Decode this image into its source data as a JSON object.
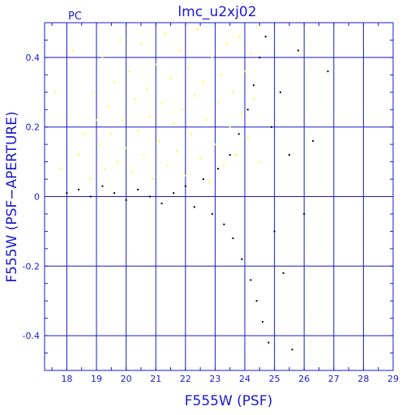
{
  "chart_data": {
    "type": "scatter",
    "title": "lmc_u2xj02",
    "corner_label": "PC",
    "xlabel": "F555W (PSF)",
    "ylabel": "F555W (PSF−APERTURE)",
    "xlim": [
      17.25,
      29.0
    ],
    "ylim": [
      -0.5,
      0.5
    ],
    "x_ticks": [
      18,
      19,
      20,
      21,
      22,
      23,
      24,
      25,
      26,
      27,
      28,
      29
    ],
    "y_ticks": [
      -0.4,
      -0.2,
      0,
      0.2,
      0.4
    ],
    "grid": true,
    "colors": {
      "axis": "#1a1acc",
      "grid": "#1a1acc",
      "yellow_series": "#ffff00",
      "black_series": "#000000"
    },
    "series": [
      {
        "color": "#ffff00",
        "points": [
          [
            17.6,
            0.3
          ],
          [
            17.8,
            0.08
          ],
          [
            18.2,
            0.42
          ],
          [
            18.4,
            0.12
          ],
          [
            18.6,
            0.18
          ],
          [
            18.8,
            0.05
          ],
          [
            18.9,
            0.3
          ],
          [
            19.0,
            0.22
          ],
          [
            19.1,
            0.15
          ],
          [
            19.2,
            0.4
          ],
          [
            19.3,
            0.08
          ],
          [
            19.4,
            0.26
          ],
          [
            19.5,
            0.18
          ],
          [
            19.6,
            0.33
          ],
          [
            19.7,
            0.1
          ],
          [
            19.8,
            0.45
          ],
          [
            19.9,
            0.22
          ],
          [
            20.0,
            0.14
          ],
          [
            20.1,
            0.36
          ],
          [
            20.2,
            0.07
          ],
          [
            20.3,
            0.28
          ],
          [
            20.4,
            0.19
          ],
          [
            20.5,
            0.44
          ],
          [
            20.6,
            0.12
          ],
          [
            20.7,
            0.31
          ],
          [
            20.8,
            0.23
          ],
          [
            20.9,
            0.05
          ],
          [
            21.0,
            0.38
          ],
          [
            21.1,
            0.16
          ],
          [
            21.2,
            0.27
          ],
          [
            21.3,
            0.47
          ],
          [
            21.4,
            0.09
          ],
          [
            21.5,
            0.34
          ],
          [
            21.6,
            0.21
          ],
          [
            21.7,
            0.13
          ],
          [
            21.8,
            0.42
          ],
          [
            21.9,
            0.25
          ],
          [
            22.0,
            0.06
          ],
          [
            22.1,
            0.37
          ],
          [
            22.2,
            0.18
          ],
          [
            22.3,
            0.29
          ],
          [
            22.4,
            0.48
          ],
          [
            22.5,
            0.11
          ],
          [
            22.6,
            0.33
          ],
          [
            22.7,
            0.22
          ],
          [
            22.8,
            0.04
          ],
          [
            22.9,
            0.4
          ],
          [
            23.0,
            0.15
          ],
          [
            23.1,
            0.27
          ],
          [
            23.2,
            0.35
          ],
          [
            23.3,
            0.09
          ],
          [
            23.4,
            0.44
          ],
          [
            23.5,
            0.2
          ],
          [
            23.6,
            0.3
          ],
          [
            23.7,
            0.12
          ],
          [
            23.8,
            0.46
          ],
          [
            23.9,
            0.24
          ],
          [
            24.0,
            0.36
          ],
          [
            24.1,
            0.17
          ],
          [
            24.2,
            0.41
          ],
          [
            24.3,
            0.28
          ],
          [
            24.4,
            0.49
          ],
          [
            24.5,
            0.1
          ]
        ]
      },
      {
        "color": "#000000",
        "points": [
          [
            18.0,
            0.01
          ],
          [
            18.4,
            0.02
          ],
          [
            18.8,
            0.0
          ],
          [
            19.2,
            0.03
          ],
          [
            19.6,
            0.01
          ],
          [
            20.0,
            -0.01
          ],
          [
            20.4,
            0.02
          ],
          [
            20.8,
            0.0
          ],
          [
            21.2,
            -0.02
          ],
          [
            21.6,
            0.01
          ],
          [
            22.0,
            0.03
          ],
          [
            22.3,
            -0.03
          ],
          [
            22.6,
            0.05
          ],
          [
            22.9,
            -0.05
          ],
          [
            23.1,
            0.08
          ],
          [
            23.3,
            -0.08
          ],
          [
            23.5,
            0.12
          ],
          [
            23.6,
            -0.12
          ],
          [
            23.8,
            0.18
          ],
          [
            23.9,
            -0.18
          ],
          [
            24.1,
            0.25
          ],
          [
            24.2,
            -0.24
          ],
          [
            24.3,
            0.32
          ],
          [
            24.4,
            -0.3
          ],
          [
            24.5,
            0.4
          ],
          [
            24.6,
            -0.36
          ],
          [
            24.7,
            0.46
          ],
          [
            24.8,
            -0.42
          ],
          [
            24.9,
            0.2
          ],
          [
            25.0,
            -0.1
          ],
          [
            25.2,
            0.3
          ],
          [
            25.3,
            -0.22
          ],
          [
            25.5,
            0.12
          ],
          [
            25.6,
            -0.44
          ],
          [
            25.8,
            0.42
          ],
          [
            26.0,
            -0.05
          ],
          [
            26.3,
            0.16
          ],
          [
            26.8,
            0.36
          ]
        ]
      }
    ]
  }
}
